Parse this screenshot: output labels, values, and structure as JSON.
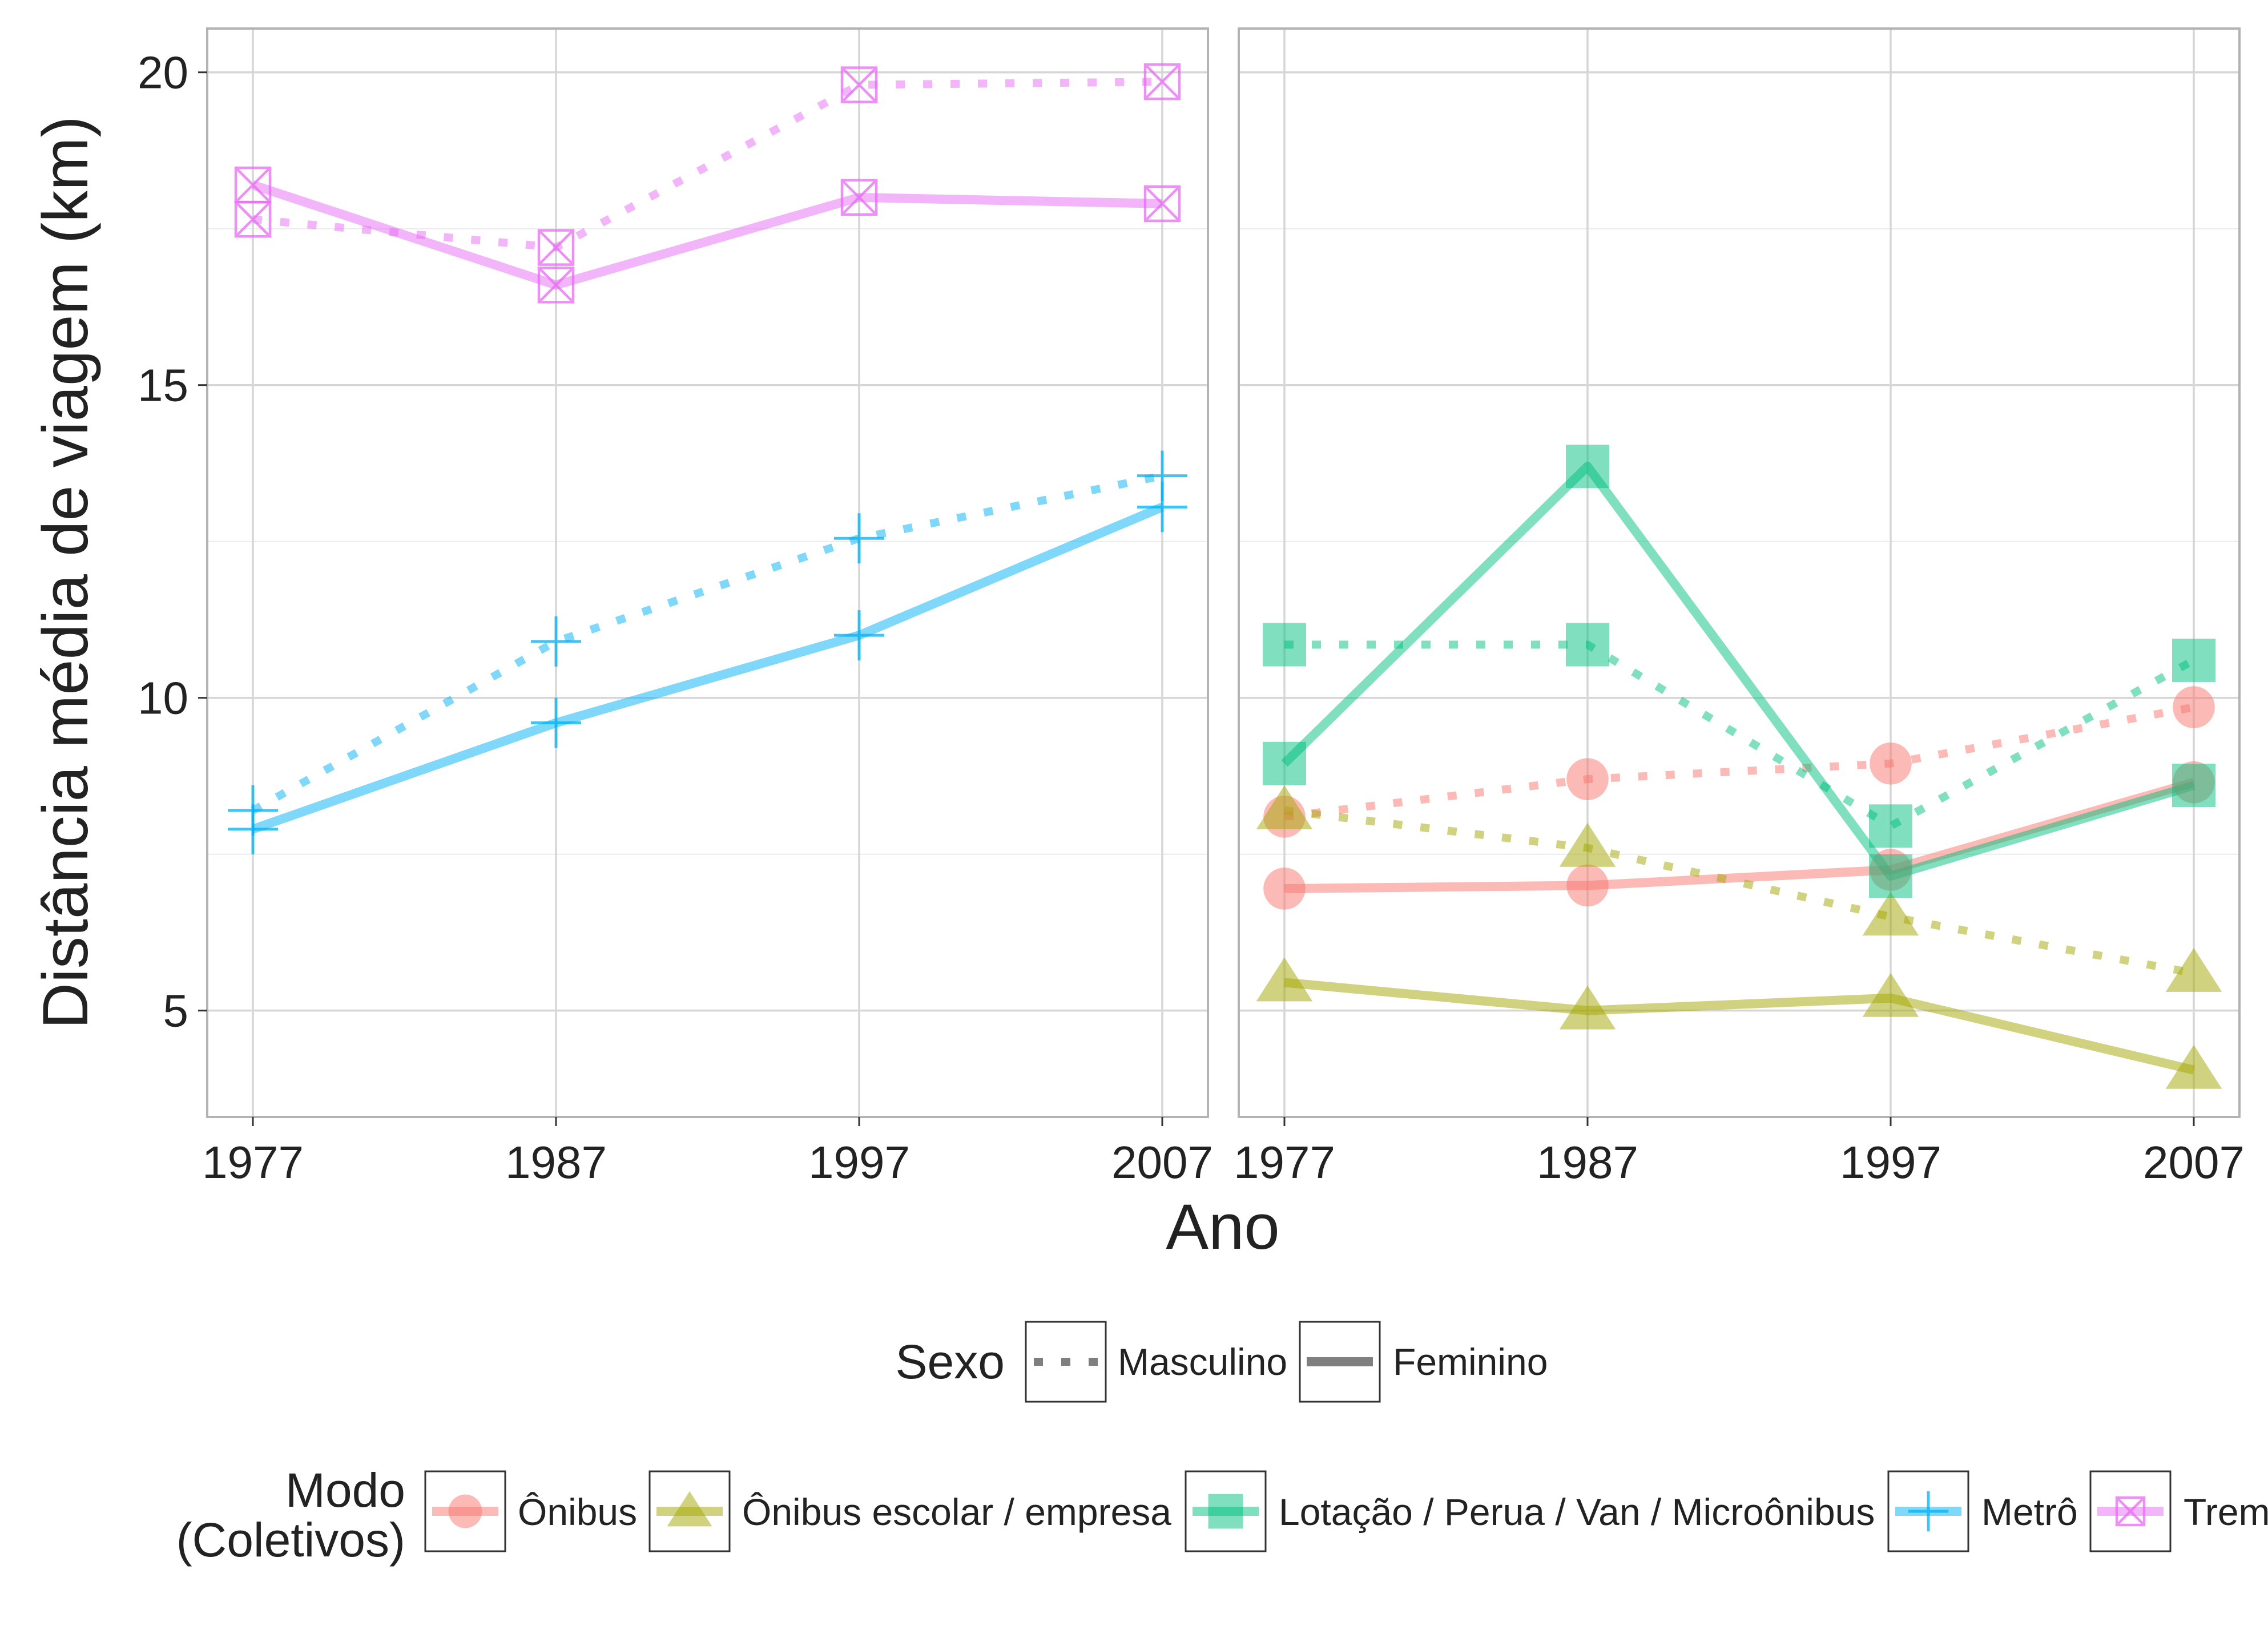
{
  "chart_data": {
    "type": "line",
    "xlabel": "Ano",
    "ylabel": "Distância média de viagem (km)",
    "x": [
      1977,
      1987,
      1997,
      2007
    ],
    "x_ticks": [
      "1977",
      "1987",
      "1997",
      "2007"
    ],
    "y_ticks": [
      "5",
      "10",
      "15",
      "20"
    ],
    "ylim": [
      3.3,
      20.7
    ],
    "grid": true,
    "legend_position": "bottom",
    "panels": [
      {
        "series": [
          {
            "mode": "Metrô",
            "sexo": "Masculino",
            "values": [
              8.2,
              10.9,
              12.55,
              13.55
            ]
          },
          {
            "mode": "Metrô",
            "sexo": "Feminino",
            "values": [
              7.9,
              9.6,
              11.0,
              13.05
            ]
          },
          {
            "mode": "Trem",
            "sexo": "Masculino",
            "values": [
              17.65,
              17.2,
              19.8,
              19.85
            ]
          },
          {
            "mode": "Trem",
            "sexo": "Feminino",
            "values": [
              18.2,
              16.6,
              18.0,
              17.9
            ]
          }
        ]
      },
      {
        "series": [
          {
            "mode": "Ônibus",
            "sexo": "Masculino",
            "values": [
              8.1,
              8.7,
              8.95,
              9.85
            ]
          },
          {
            "mode": "Ônibus",
            "sexo": "Feminino",
            "values": [
              6.95,
              7.0,
              7.25,
              8.65
            ]
          },
          {
            "mode": "Ônibus escolar / empresa",
            "sexo": "Masculino",
            "values": [
              8.2,
              7.6,
              6.5,
              5.6
            ]
          },
          {
            "mode": "Ônibus escolar / empresa",
            "sexo": "Feminino",
            "values": [
              5.45,
              5.0,
              5.2,
              4.05
            ]
          },
          {
            "mode": "Lotação / Perua / Van / Microônibus",
            "sexo": "Masculino",
            "values": [
              10.85,
              10.85,
              7.95,
              10.6
            ]
          },
          {
            "mode": "Lotação / Perua / Van / Microônibus",
            "sexo": "Feminino",
            "values": [
              8.95,
              13.7,
              7.15,
              8.6
            ]
          }
        ]
      }
    ],
    "legend_sexo": {
      "title": "Sexo",
      "items": [
        {
          "key": "Masculino",
          "label": "Masculino"
        },
        {
          "key": "Feminino",
          "label": "Feminino"
        }
      ]
    },
    "legend_modo": {
      "title_line1": "Modo",
      "title_line2": "(Coletivos)",
      "items": [
        {
          "key": "Ônibus",
          "label": "Ônibus",
          "color": "#F8766D",
          "shape": "circle"
        },
        {
          "key": "Ônibus escolar / empresa",
          "label": "Ônibus escolar / empresa",
          "color": "#A3A500",
          "shape": "triangle"
        },
        {
          "key": "Lotação / Perua / Van / Microônibus",
          "label": "Lotação / Perua / Van / Microônibus",
          "color": "#00BF7D",
          "shape": "square"
        },
        {
          "key": "Metrô",
          "label": "Metrô",
          "color": "#00B0F6",
          "shape": "plus"
        },
        {
          "key": "Trem",
          "label": "Trem",
          "color": "#E76BF3",
          "shape": "boxx"
        }
      ]
    }
  }
}
